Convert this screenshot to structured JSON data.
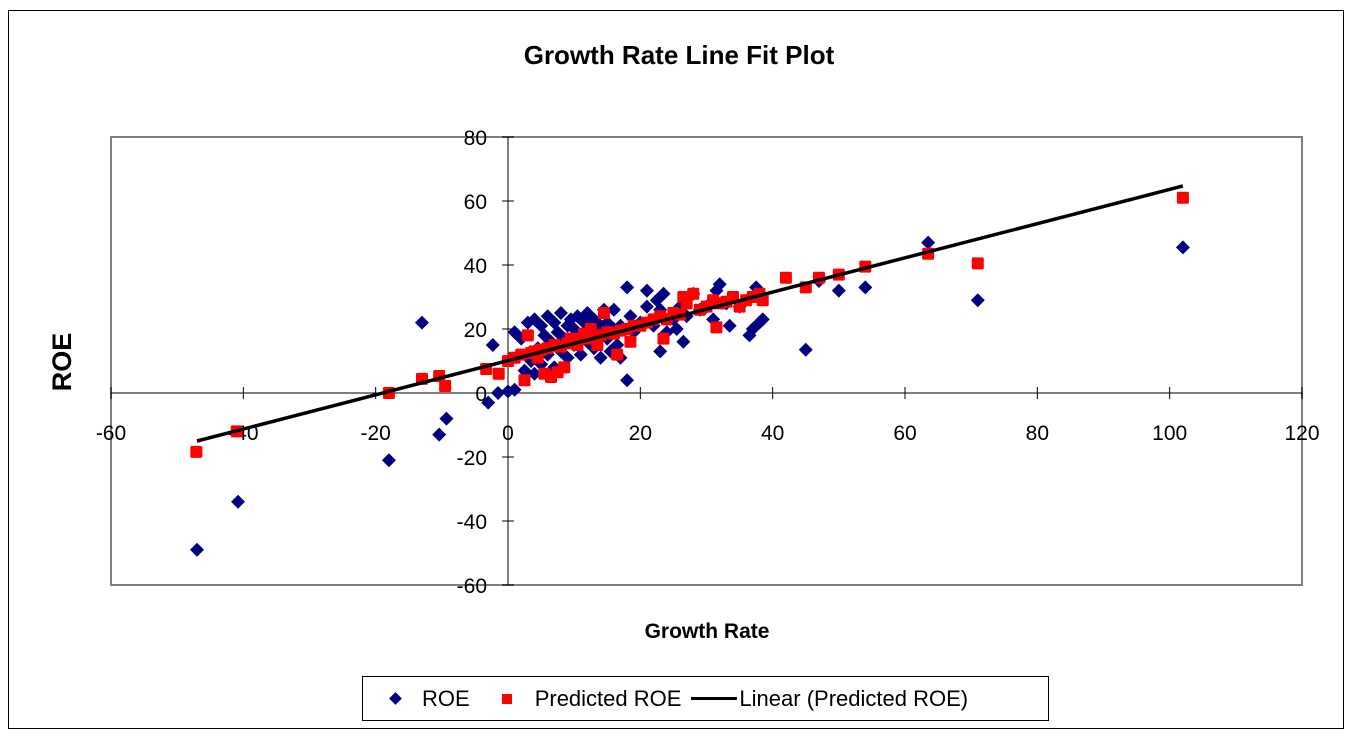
{
  "chart_data": {
    "type": "scatter",
    "title": "Growth Rate Line Fit  Plot",
    "xlabel": "Growth Rate",
    "ylabel": "ROE",
    "xlim": [
      -60,
      120
    ],
    "ylim": [
      -60,
      80
    ],
    "x_ticks": [
      "-60",
      "-40",
      "-20",
      "0",
      "20",
      "40",
      "60",
      "80",
      "100",
      "120"
    ],
    "x_tick_values": [
      -60,
      -40,
      -20,
      0,
      20,
      40,
      60,
      80,
      100,
      120
    ],
    "y_ticks": [
      "-60",
      "-40",
      "-20",
      "0",
      "20",
      "40",
      "60",
      "80"
    ],
    "y_tick_values": [
      -60,
      -40,
      -20,
      0,
      20,
      40,
      60,
      80
    ],
    "grid": false,
    "legend_position": "bottom",
    "colors": {
      "roe": "#000080",
      "predicted": "#ff0000",
      "trend": "#000000",
      "plot_border": "#808080"
    },
    "series": [
      {
        "name": "ROE",
        "marker": "diamond",
        "points": [
          [
            -47,
            -49
          ],
          [
            -40.8,
            -34
          ],
          [
            -18,
            -21
          ],
          [
            -13,
            22
          ],
          [
            -10.4,
            -13
          ],
          [
            -9.3,
            -8
          ],
          [
            -3,
            -3
          ],
          [
            -2.3,
            15
          ],
          [
            -1.5,
            0
          ],
          [
            0,
            0.5
          ],
          [
            1,
            1
          ],
          [
            1,
            19
          ],
          [
            2,
            17
          ],
          [
            2.5,
            7
          ],
          [
            3,
            22
          ],
          [
            3.5,
            10
          ],
          [
            4,
            23
          ],
          [
            4,
            6
          ],
          [
            4.5,
            14
          ],
          [
            5,
            21
          ],
          [
            5,
            9
          ],
          [
            5.5,
            18
          ],
          [
            6,
            12
          ],
          [
            6,
            24
          ],
          [
            6.5,
            16
          ],
          [
            7,
            22
          ],
          [
            7,
            8
          ],
          [
            7.5,
            19
          ],
          [
            8,
            13
          ],
          [
            8,
            25
          ],
          [
            8.5,
            17
          ],
          [
            9,
            21
          ],
          [
            9,
            11
          ],
          [
            9.5,
            23
          ],
          [
            10,
            15
          ],
          [
            10,
            20
          ],
          [
            10.5,
            24
          ],
          [
            11,
            12
          ],
          [
            11,
            18
          ],
          [
            11.5,
            22
          ],
          [
            12,
            16
          ],
          [
            12,
            25
          ],
          [
            12.5,
            20
          ],
          [
            13,
            14
          ],
          [
            13,
            23
          ],
          [
            13.5,
            18
          ],
          [
            14,
            21
          ],
          [
            14,
            11
          ],
          [
            14.5,
            26
          ],
          [
            15,
            17
          ],
          [
            15,
            22
          ],
          [
            15.5,
            13
          ],
          [
            16,
            20
          ],
          [
            16,
            26
          ],
          [
            16.5,
            15
          ],
          [
            17,
            21
          ],
          [
            17,
            11
          ],
          [
            18,
            4
          ],
          [
            18,
            33
          ],
          [
            18.5,
            24
          ],
          [
            19,
            19
          ],
          [
            20,
            22
          ],
          [
            21,
            27
          ],
          [
            21,
            32
          ],
          [
            22,
            21
          ],
          [
            22.5,
            29
          ],
          [
            23,
            13
          ],
          [
            23,
            26
          ],
          [
            23.5,
            31
          ],
          [
            24,
            19
          ],
          [
            25,
            23
          ],
          [
            25.5,
            20
          ],
          [
            26,
            27
          ],
          [
            26.5,
            16
          ],
          [
            27,
            24
          ],
          [
            28,
            31
          ],
          [
            29,
            26
          ],
          [
            30,
            27
          ],
          [
            31,
            23
          ],
          [
            31.5,
            32
          ],
          [
            32,
            34
          ],
          [
            33,
            28
          ],
          [
            33.5,
            21
          ],
          [
            35,
            27
          ],
          [
            36.5,
            18
          ],
          [
            37,
            20
          ],
          [
            37.5,
            33
          ],
          [
            38,
            22
          ],
          [
            38.5,
            23
          ],
          [
            45,
            13.5
          ],
          [
            47,
            35
          ],
          [
            50,
            32
          ],
          [
            54,
            33
          ],
          [
            63.5,
            47
          ],
          [
            71,
            29
          ],
          [
            102,
            45.5
          ]
        ]
      },
      {
        "name": "Predicted ROE",
        "marker": "square",
        "points": [
          [
            -47.1,
            -18.4
          ],
          [
            -41,
            -12
          ],
          [
            -18,
            0
          ],
          [
            -13,
            4.4
          ],
          [
            -10.4,
            5.3
          ],
          [
            -9.5,
            2.2
          ],
          [
            -3.3,
            7.5
          ],
          [
            -1.4,
            6
          ],
          [
            0,
            10
          ],
          [
            1,
            11
          ],
          [
            2,
            12
          ],
          [
            2.5,
            4
          ],
          [
            3,
            18
          ],
          [
            3.5,
            12.5
          ],
          [
            4,
            13
          ],
          [
            4.5,
            11
          ],
          [
            5,
            13.5
          ],
          [
            5.5,
            6
          ],
          [
            6,
            14
          ],
          [
            6.5,
            5
          ],
          [
            7,
            15
          ],
          [
            7.5,
            6.5
          ],
          [
            8,
            14.5
          ],
          [
            8.5,
            8
          ],
          [
            9,
            15.5
          ],
          [
            9.5,
            17
          ],
          [
            10,
            16
          ],
          [
            10.5,
            15
          ],
          [
            11,
            17
          ],
          [
            11.5,
            18.5
          ],
          [
            12,
            17
          ],
          [
            12.5,
            20
          ],
          [
            13,
            17.5
          ],
          [
            13.5,
            15
          ],
          [
            14,
            18
          ],
          [
            14.5,
            25
          ],
          [
            15,
            19
          ],
          [
            16,
            18.5
          ],
          [
            16.5,
            12
          ],
          [
            17,
            19.5
          ],
          [
            18,
            20
          ],
          [
            18.5,
            16
          ],
          [
            19,
            21
          ],
          [
            20,
            21
          ],
          [
            21,
            22
          ],
          [
            22,
            23
          ],
          [
            23,
            24
          ],
          [
            23.5,
            17
          ],
          [
            24,
            23
          ],
          [
            25,
            25
          ],
          [
            26,
            24.5
          ],
          [
            26.5,
            30
          ],
          [
            27,
            28
          ],
          [
            28,
            31
          ],
          [
            29,
            26
          ],
          [
            30,
            27
          ],
          [
            31,
            29
          ],
          [
            31.5,
            20.5
          ],
          [
            32,
            28
          ],
          [
            33,
            28.5
          ],
          [
            34,
            30
          ],
          [
            35,
            27
          ],
          [
            36,
            29
          ],
          [
            37,
            30
          ],
          [
            38,
            31
          ],
          [
            38.5,
            29
          ],
          [
            42,
            36
          ],
          [
            45,
            33
          ],
          [
            47,
            36
          ],
          [
            50,
            37
          ],
          [
            54,
            39.5
          ],
          [
            63.5,
            43.5
          ],
          [
            71,
            40.5
          ],
          [
            102,
            61
          ]
        ]
      },
      {
        "name": "Linear (Predicted ROE)",
        "type": "line",
        "points": [
          [
            -47,
            -15
          ],
          [
            102,
            64.7
          ]
        ]
      }
    ]
  },
  "legend": {
    "items": [
      {
        "label": "ROE"
      },
      {
        "label": "Predicted ROE"
      },
      {
        "label": "Linear (Predicted ROE)"
      }
    ]
  }
}
